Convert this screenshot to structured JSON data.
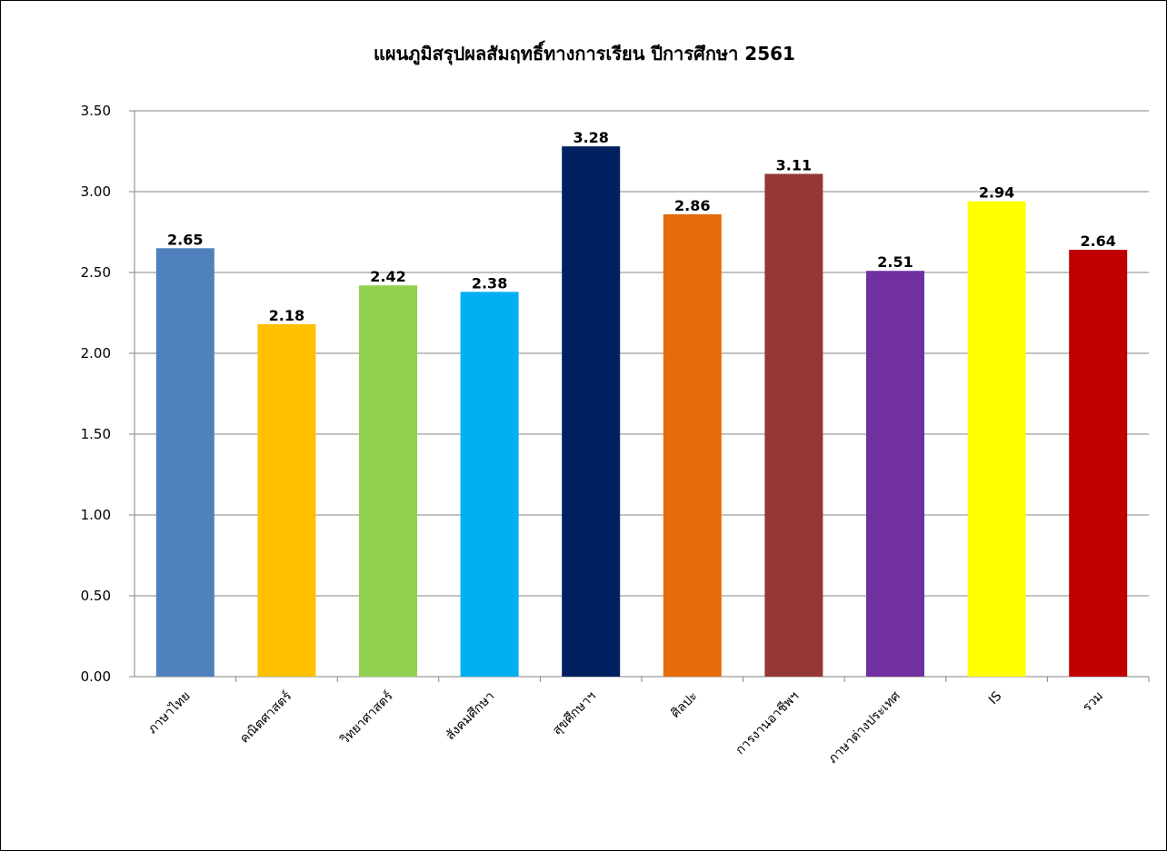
{
  "chart_data": {
    "type": "bar",
    "title": "แผนภูมิสรุปผลสัมฤทธิ์ทางการเรียน ปีการศึกษา 2561",
    "xlabel": "",
    "ylabel": "",
    "ylim": [
      0,
      3.5
    ],
    "yticks": [
      "0.00",
      "0.50",
      "1.00",
      "1.50",
      "2.00",
      "2.50",
      "3.00",
      "3.50"
    ],
    "grid": true,
    "legend": "none",
    "categories": [
      "ภาษาไทย",
      "คณิตศาสตร์",
      "วิทยาศาสตร์",
      "สังคมศึกษา",
      "สุขศึกษาฯ",
      "ศิลปะ",
      "การงานอาชีพฯ",
      "ภาษาต่างประเทศ",
      "IS",
      "รวม"
    ],
    "values": [
      2.65,
      2.18,
      2.42,
      2.38,
      3.28,
      2.86,
      3.11,
      2.51,
      2.94,
      2.64
    ],
    "value_labels": [
      "2.65",
      "2.18",
      "2.42",
      "2.38",
      "3.28",
      "2.86",
      "3.11",
      "2.51",
      "2.94",
      "2.64"
    ],
    "colors": [
      "#4F81BD",
      "#FFC000",
      "#92D050",
      "#00B0F0",
      "#002060",
      "#E46C0A",
      "#953735",
      "#7030A0",
      "#FFFF00",
      "#C00000"
    ]
  }
}
